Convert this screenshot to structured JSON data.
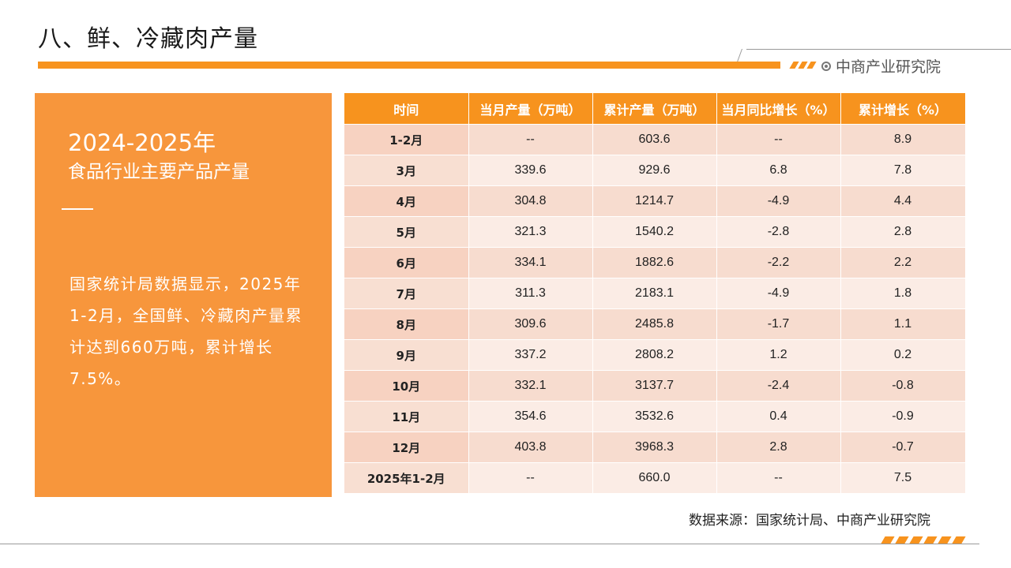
{
  "page": {
    "title": "八、鲜、冷藏肉产量",
    "brand": "中商产业研究院"
  },
  "left_panel": {
    "year": "2024-2025年",
    "subtitle": "食品行业主要产品产量",
    "text": "国家统计局数据显示，2025年1-2月，全国鲜、冷藏肉产量累计达到660万吨，累计增长7.5%。"
  },
  "table": {
    "headers": [
      "时间",
      "当月产量（万吨）",
      "累计产量（万吨）",
      "当月同比增长（%）",
      "累计增长（%）"
    ],
    "rows": [
      [
        "1-2月",
        "--",
        "603.6",
        "--",
        "8.9"
      ],
      [
        "3月",
        "339.6",
        "929.6",
        "6.8",
        "7.8"
      ],
      [
        "4月",
        "304.8",
        "1214.7",
        "-4.9",
        "4.4"
      ],
      [
        "5月",
        "321.3",
        "1540.2",
        "-2.8",
        "2.8"
      ],
      [
        "6月",
        "334.1",
        "1882.6",
        "-2.2",
        "2.2"
      ],
      [
        "7月",
        "311.3",
        "2183.1",
        "-4.9",
        "1.8"
      ],
      [
        "8月",
        "309.6",
        "2485.8",
        "-1.7",
        "1.1"
      ],
      [
        "9月",
        "337.2",
        "2808.2",
        "1.2",
        "0.2"
      ],
      [
        "10月",
        "332.1",
        "3137.7",
        "-2.4",
        "-0.8"
      ],
      [
        "11月",
        "354.6",
        "3532.6",
        "0.4",
        "-0.9"
      ],
      [
        "12月",
        "403.8",
        "3968.3",
        "2.8",
        "-0.7"
      ],
      [
        "2025年1-2月",
        "--",
        "660.0",
        "--",
        "7.5"
      ]
    ]
  },
  "source": "数据来源：国家统计局、中商产业研究院",
  "colors": {
    "accent": "#f7931e",
    "panel": "#f7963c",
    "row_a": "#f7dccf",
    "row_b": "#fbece5"
  }
}
